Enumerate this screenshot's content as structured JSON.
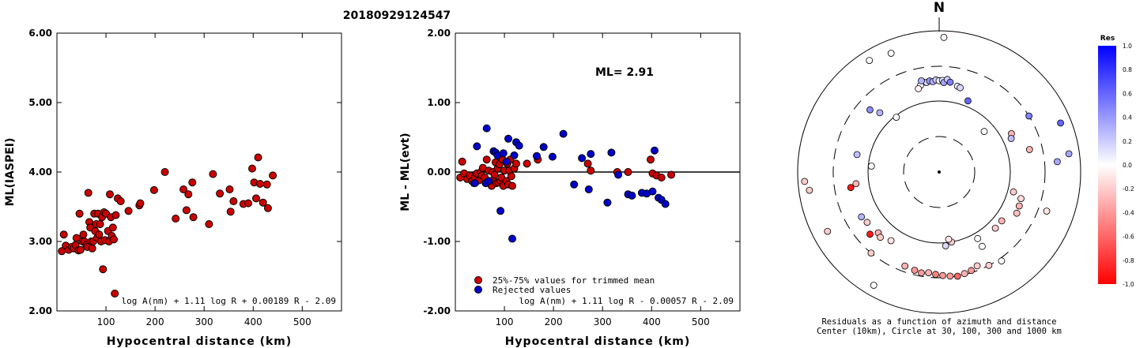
{
  "page_title": "20180929124547",
  "chart_data": [
    {
      "type": "scatter",
      "ylabel": "ML(IASPEI)",
      "xlabel": "Hypocentral distance (km)",
      "xlim": [
        0,
        580
      ],
      "ylim": [
        2.0,
        6.0
      ],
      "x_ticks": [
        "100",
        "200",
        "300",
        "400",
        "500"
      ],
      "y_ticks": [
        "2.00",
        "3.00",
        "4.00",
        "5.00",
        "6.00"
      ],
      "formula": "log A(nm) + 1.11 log R + 0.00189 R - 2.09",
      "marker_color": "#cc0000",
      "points": [
        [
          10,
          2.86
        ],
        [
          14,
          3.1
        ],
        [
          18,
          2.94
        ],
        [
          24,
          2.88
        ],
        [
          30,
          2.92
        ],
        [
          34,
          2.9
        ],
        [
          38,
          2.95
        ],
        [
          40,
          3.05
        ],
        [
          44,
          2.87
        ],
        [
          46,
          3.4
        ],
        [
          48,
          2.88
        ],
        [
          52,
          3.0
        ],
        [
          54,
          3.1
        ],
        [
          56,
          3.0
        ],
        [
          60,
          2.95
        ],
        [
          62,
          2.92
        ],
        [
          64,
          3.7
        ],
        [
          66,
          3.28
        ],
        [
          68,
          3.2
        ],
        [
          70,
          3.0
        ],
        [
          72,
          2.9
        ],
        [
          74,
          3.0
        ],
        [
          76,
          3.4
        ],
        [
          78,
          3.15
        ],
        [
          80,
          3.25
        ],
        [
          82,
          3.05
        ],
        [
          84,
          3.4
        ],
        [
          86,
          3.1
        ],
        [
          88,
          3.25
        ],
        [
          90,
          3.0
        ],
        [
          92,
          3.35
        ],
        [
          94,
          2.6
        ],
        [
          96,
          3.42
        ],
        [
          98,
          3.02
        ],
        [
          100,
          3.4
        ],
        [
          104,
          3.15
        ],
        [
          106,
          3.0
        ],
        [
          108,
          3.68
        ],
        [
          110,
          3.35
        ],
        [
          112,
          3.08
        ],
        [
          114,
          3.2
        ],
        [
          116,
          3.03
        ],
        [
          118,
          2.25
        ],
        [
          120,
          3.38
        ],
        [
          124,
          3.62
        ],
        [
          130,
          3.58
        ],
        [
          146,
          3.44
        ],
        [
          168,
          3.52
        ],
        [
          170,
          3.55
        ],
        [
          198,
          3.74
        ],
        [
          220,
          4.0
        ],
        [
          242,
          3.33
        ],
        [
          258,
          3.75
        ],
        [
          264,
          3.45
        ],
        [
          268,
          3.68
        ],
        [
          276,
          3.85
        ],
        [
          278,
          3.35
        ],
        [
          310,
          3.25
        ],
        [
          318,
          3.97
        ],
        [
          332,
          3.69
        ],
        [
          352,
          3.75
        ],
        [
          354,
          3.43
        ],
        [
          360,
          3.58
        ],
        [
          380,
          3.54
        ],
        [
          390,
          3.55
        ],
        [
          398,
          4.05
        ],
        [
          402,
          3.85
        ],
        [
          406,
          3.62
        ],
        [
          410,
          4.21
        ],
        [
          414,
          3.83
        ],
        [
          420,
          3.56
        ],
        [
          428,
          3.82
        ],
        [
          430,
          3.48
        ],
        [
          440,
          3.95
        ]
      ]
    },
    {
      "type": "scatter",
      "ylabel": "ML - ML(evt)",
      "xlabel": "Hypocentral distance (km)",
      "xlim": [
        0,
        580
      ],
      "ylim": [
        -2.0,
        2.0
      ],
      "x_ticks": [
        "100",
        "200",
        "300",
        "400",
        "500"
      ],
      "y_ticks": [
        "-2.00",
        "-1.00",
        "0.00",
        "1.00",
        "2.00"
      ],
      "annotation": "ML= 2.91",
      "legend": [
        "25%-75% values for trimmed mean",
        "Rejected values"
      ],
      "formula": "log A(nm) + 1.11 log R - 0.00057 R - 2.09",
      "series": [
        {
          "name": "25%-75% values for trimmed mean",
          "color": "#cc0000",
          "points": [
            [
              10,
              -0.08
            ],
            [
              14,
              0.15
            ],
            [
              18,
              -0.02
            ],
            [
              24,
              -0.1
            ],
            [
              30,
              -0.05
            ],
            [
              34,
              -0.13
            ],
            [
              38,
              -0.16
            ],
            [
              40,
              -0.08
            ],
            [
              44,
              -0.02
            ],
            [
              48,
              -0.12
            ],
            [
              52,
              0.0
            ],
            [
              54,
              -0.05
            ],
            [
              56,
              0.06
            ],
            [
              60,
              -0.08
            ],
            [
              62,
              -0.16
            ],
            [
              64,
              0.18
            ],
            [
              66,
              -0.14
            ],
            [
              68,
              0.02
            ],
            [
              70,
              -0.16
            ],
            [
              72,
              -0.13
            ],
            [
              74,
              -0.2
            ],
            [
              76,
              0.0
            ],
            [
              78,
              -0.12
            ],
            [
              80,
              -0.04
            ],
            [
              82,
              0.14
            ],
            [
              84,
              -0.16
            ],
            [
              86,
              0.05
            ],
            [
              88,
              -0.15
            ],
            [
              90,
              0.11
            ],
            [
              92,
              -0.13
            ],
            [
              94,
              -0.08
            ],
            [
              96,
              0.18
            ],
            [
              98,
              -0.2
            ],
            [
              100,
              0.02
            ],
            [
              104,
              -0.13
            ],
            [
              106,
              0.12
            ],
            [
              108,
              -0.18
            ],
            [
              110,
              0.02
            ],
            [
              112,
              0.18
            ],
            [
              114,
              -0.06
            ],
            [
              116,
              -0.2
            ],
            [
              120,
              0.05
            ],
            [
              124,
              0.12
            ],
            [
              146,
              0.12
            ],
            [
              168,
              0.18
            ],
            [
              270,
              0.12
            ],
            [
              276,
              0.02
            ],
            [
              330,
              0.0
            ],
            [
              352,
              0.0
            ],
            [
              398,
              0.18
            ],
            [
              402,
              -0.02
            ],
            [
              410,
              -0.05
            ],
            [
              420,
              -0.08
            ],
            [
              440,
              -0.04
            ]
          ]
        },
        {
          "name": "Rejected values",
          "color": "#0000cc",
          "points": [
            [
              40,
              -0.16
            ],
            [
              44,
              0.37
            ],
            [
              62,
              -0.16
            ],
            [
              64,
              0.63
            ],
            [
              68,
              -0.13
            ],
            [
              78,
              0.3
            ],
            [
              82,
              0.28
            ],
            [
              86,
              0.24
            ],
            [
              92,
              -0.56
            ],
            [
              98,
              0.27
            ],
            [
              104,
              0.15
            ],
            [
              108,
              0.48
            ],
            [
              116,
              -0.96
            ],
            [
              120,
              0.24
            ],
            [
              124,
              0.43
            ],
            [
              130,
              0.38
            ],
            [
              166,
              0.23
            ],
            [
              180,
              0.36
            ],
            [
              198,
              0.22
            ],
            [
              220,
              0.55
            ],
            [
              242,
              -0.18
            ],
            [
              258,
              0.2
            ],
            [
              272,
              -0.25
            ],
            [
              276,
              0.26
            ],
            [
              310,
              -0.44
            ],
            [
              318,
              0.28
            ],
            [
              332,
              -0.04
            ],
            [
              352,
              -0.32
            ],
            [
              360,
              -0.34
            ],
            [
              380,
              -0.3
            ],
            [
              390,
              -0.31
            ],
            [
              402,
              -0.28
            ],
            [
              406,
              0.31
            ],
            [
              414,
              -0.37
            ],
            [
              420,
              -0.4
            ],
            [
              428,
              -0.46
            ]
          ]
        }
      ]
    },
    {
      "type": "polar_scatter",
      "north_label": "N",
      "caption": [
        "Residuals as a function of azimuth and distance",
        "Center (10km), Circle at 30, 100, 300 and 1000 km"
      ],
      "colorbar_title": "Res",
      "colorbar_ticks": [
        "1.0",
        "0.8",
        "0.6",
        "0.4",
        "0.2",
        "0.0",
        "-0.2",
        "-0.4",
        "-0.6",
        "-0.8",
        "-1.0"
      ],
      "positive_color": "#0000ff",
      "negative_color": "#ff0000",
      "points": [
        {
          "az": 2,
          "dist": 800,
          "res": -0.05
        },
        {
          "az": -32,
          "dist": 720,
          "res": 0.0
        },
        {
          "az": -22,
          "dist": 640,
          "res": 0.02
        },
        {
          "az": -10,
          "dist": 190,
          "res": 0.25
        },
        {
          "az": -8,
          "dist": 185,
          "res": 0.15
        },
        {
          "az": -6,
          "dist": 192,
          "res": 0.4
        },
        {
          "az": -4,
          "dist": 186,
          "res": 0.3
        },
        {
          "az": -2,
          "dist": 195,
          "res": 0.2
        },
        {
          "az": 0,
          "dist": 190,
          "res": 0.05
        },
        {
          "az": 2,
          "dist": 192,
          "res": 0.1
        },
        {
          "az": 3,
          "dist": 180,
          "res": 0.35
        },
        {
          "az": 5,
          "dist": 200,
          "res": 0.2
        },
        {
          "az": 7,
          "dist": 185,
          "res": 0.5
        },
        {
          "az": -12,
          "dist": 175,
          "res": 0.0
        },
        {
          "az": -14,
          "dist": 160,
          "res": -0.05
        },
        {
          "az": -11,
          "dist": 200,
          "res": 0.3
        },
        {
          "az": 12,
          "dist": 170,
          "res": 0.1
        },
        {
          "az": 14,
          "dist": 165,
          "res": 0.15
        },
        {
          "az": 22,
          "dist": 120,
          "res": 0.6
        },
        {
          "az": -45,
          "dist": 150,
          "res": 0.3
        },
        {
          "az": -48,
          "dist": 200,
          "res": 0.45
        },
        {
          "az": -38,
          "dist": 95,
          "res": 0.0
        },
        {
          "az": 48,
          "dist": 70,
          "res": 0.0
        },
        {
          "az": 62,
          "dist": 140,
          "res": -0.3
        },
        {
          "az": 65,
          "dist": 130,
          "res": 0.25
        },
        {
          "az": 58,
          "dist": 300,
          "res": 0.5
        },
        {
          "az": 68,
          "dist": 700,
          "res": 0.6
        },
        {
          "az": 82,
          "dist": 700,
          "res": 0.35
        },
        {
          "az": 85,
          "dist": 460,
          "res": 0.35
        },
        {
          "az": 76,
          "dist": 200,
          "res": -0.3
        },
        {
          "az": -78,
          "dist": 150,
          "res": 0.25
        },
        {
          "az": -85,
          "dist": 90,
          "res": 0.0
        },
        {
          "az": 105,
          "dist": 120,
          "res": -0.2
        },
        {
          "az": 108,
          "dist": 160,
          "res": -0.15
        },
        {
          "az": 110,
          "dist": 400,
          "res": -0.1
        },
        {
          "az": 113,
          "dist": 165,
          "res": -0.3
        },
        {
          "az": 118,
          "dist": 170,
          "res": -0.25
        },
        {
          "az": 128,
          "dist": 130,
          "res": -0.3
        },
        {
          "az": 135,
          "dist": 130,
          "res": -0.2
        },
        {
          "az": 150,
          "dist": 120,
          "res": 0.0
        },
        {
          "az": 150,
          "dist": 160,
          "res": 0.0
        },
        {
          "az": 170,
          "dist": 100,
          "res": -0.2
        },
        {
          "az": 175,
          "dist": 110,
          "res": 0.15
        },
        {
          "az": 172,
          "dist": 90,
          "res": -0.1
        },
        {
          "az": -98,
          "dist": 150,
          "res": -0.3
        },
        {
          "az": -100,
          "dist": 180,
          "res": -0.9
        },
        {
          "az": -98,
          "dist": 700,
          "res": -0.2
        },
        {
          "az": -94,
          "dist": 800,
          "res": -0.2
        },
        {
          "az": -120,
          "dist": 180,
          "res": 0.3
        },
        {
          "az": -125,
          "dist": 170,
          "res": -0.2
        },
        {
          "az": -118,
          "dist": 600,
          "res": -0.2
        },
        {
          "az": -132,
          "dist": 200,
          "res": -0.9
        },
        {
          "az": -135,
          "dist": 160,
          "res": -0.3
        },
        {
          "az": -138,
          "dist": 170,
          "res": -0.2
        },
        {
          "az": -145,
          "dist": 150,
          "res": -0.1
        },
        {
          "az": -140,
          "dist": 300,
          "res": -0.2
        },
        {
          "az": -150,
          "dist": 700,
          "res": 0.0
        },
        {
          "az": -160,
          "dist": 250,
          "res": -0.3
        },
        {
          "az": -166,
          "dist": 260,
          "res": -0.4
        },
        {
          "az": -170,
          "dist": 270,
          "res": -0.4
        },
        {
          "az": -174,
          "dist": 260,
          "res": -0.3
        },
        {
          "az": -178,
          "dist": 270,
          "res": -0.5
        },
        {
          "az": 178,
          "dist": 280,
          "res": -0.4
        },
        {
          "az": 174,
          "dist": 290,
          "res": -0.4
        },
        {
          "az": 170,
          "dist": 300,
          "res": -0.6
        },
        {
          "az": 166,
          "dist": 290,
          "res": -0.3
        },
        {
          "az": 162,
          "dist": 280,
          "res": -0.4
        },
        {
          "az": 158,
          "dist": 260,
          "res": -0.2
        },
        {
          "az": 152,
          "dist": 300,
          "res": -0.2
        },
        {
          "az": 145,
          "dist": 330,
          "res": 0.0
        }
      ]
    }
  ]
}
